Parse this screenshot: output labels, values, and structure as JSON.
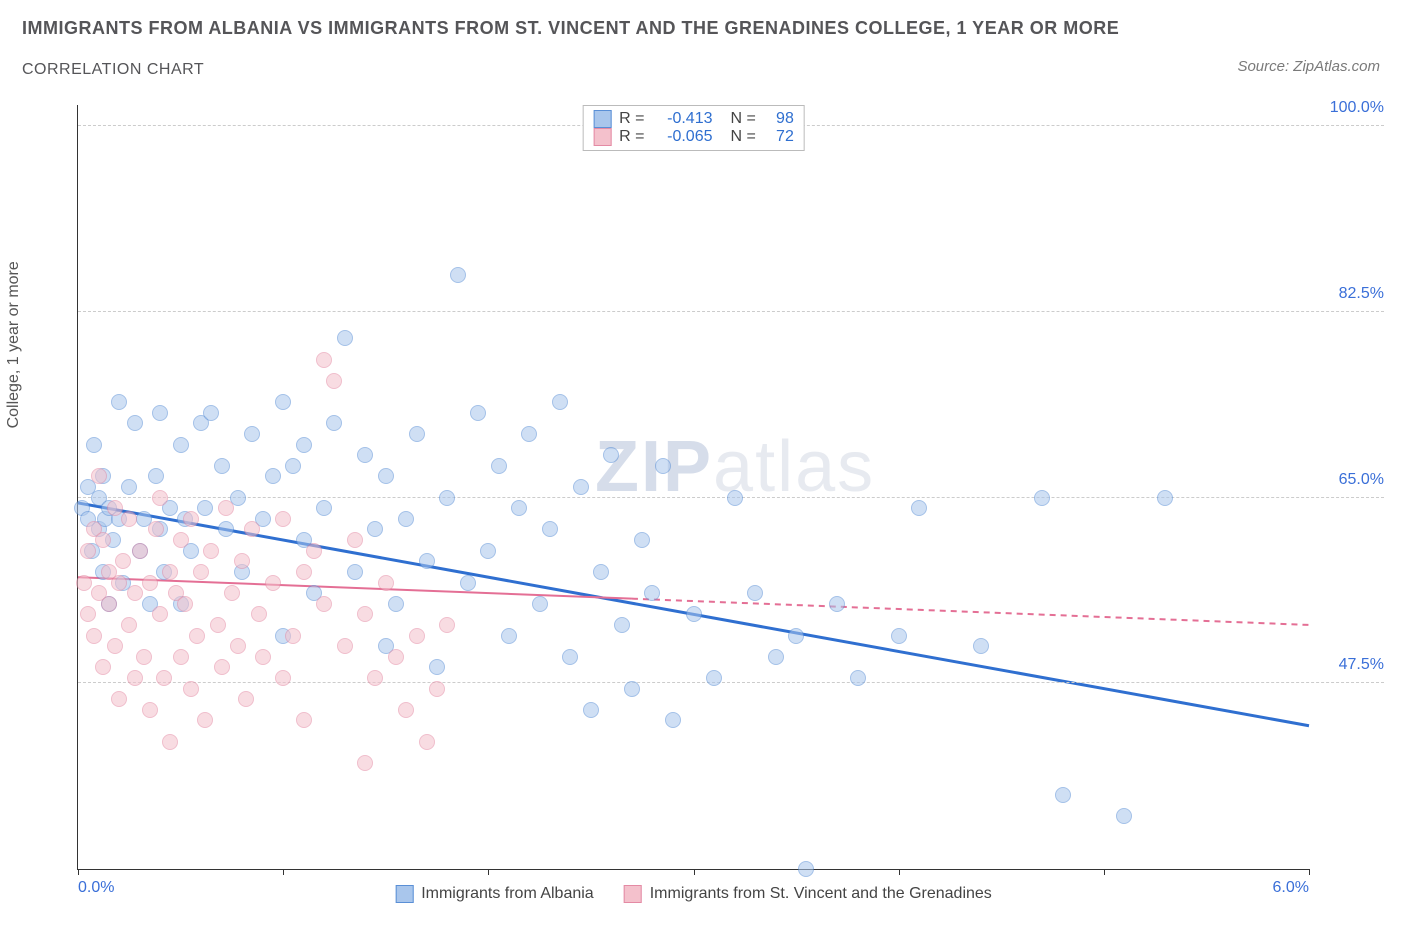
{
  "title_main": "IMMIGRANTS FROM ALBANIA VS IMMIGRANTS FROM ST. VINCENT AND THE GRENADINES COLLEGE, 1 YEAR OR MORE",
  "title_sub": "CORRELATION CHART",
  "source": "Source: ZipAtlas.com",
  "y_axis_label": "College, 1 year or more",
  "watermark_a": "ZIP",
  "watermark_b": "atlas",
  "chart": {
    "type": "scatter",
    "xlim": [
      0.0,
      6.0
    ],
    "ylim": [
      30.0,
      102.0
    ],
    "x_ticks": [
      0.0,
      1.0,
      2.0,
      3.0,
      4.0,
      5.0,
      6.0
    ],
    "x_tick_labels": {
      "0": "0.0%",
      "6": "6.0%"
    },
    "y_ticks": [
      47.5,
      65.0,
      82.5,
      100.0
    ],
    "y_tick_labels": [
      "47.5%",
      "65.0%",
      "82.5%",
      "100.0%"
    ],
    "grid_color": "#cccccc",
    "axis_color": "#333333",
    "background": "#ffffff",
    "point_radius": 8,
    "point_opacity": 0.55,
    "series": [
      {
        "key": "albania",
        "label": "Immigrants from Albania",
        "color_fill": "#a9c6ec",
        "color_stroke": "#5a8fd6",
        "R": "-0.413",
        "N": "98",
        "trend": {
          "x1": 0.0,
          "y1": 64.5,
          "x2": 6.0,
          "y2": 43.5,
          "color": "#2f6fd0",
          "width": 3,
          "dash_after_x": null
        },
        "points": [
          [
            0.02,
            64
          ],
          [
            0.05,
            66
          ],
          [
            0.05,
            63
          ],
          [
            0.07,
            60
          ],
          [
            0.08,
            70
          ],
          [
            0.1,
            62
          ],
          [
            0.1,
            65
          ],
          [
            0.12,
            58
          ],
          [
            0.12,
            67
          ],
          [
            0.13,
            63
          ],
          [
            0.15,
            64
          ],
          [
            0.15,
            55
          ],
          [
            0.17,
            61
          ],
          [
            0.2,
            74
          ],
          [
            0.2,
            63
          ],
          [
            0.22,
            57
          ],
          [
            0.25,
            66
          ],
          [
            0.28,
            72
          ],
          [
            0.3,
            60
          ],
          [
            0.32,
            63
          ],
          [
            0.35,
            55
          ],
          [
            0.38,
            67
          ],
          [
            0.4,
            73
          ],
          [
            0.4,
            62
          ],
          [
            0.42,
            58
          ],
          [
            0.45,
            64
          ],
          [
            0.5,
            70
          ],
          [
            0.5,
            55
          ],
          [
            0.52,
            63
          ],
          [
            0.55,
            60
          ],
          [
            0.6,
            72
          ],
          [
            0.62,
            64
          ],
          [
            0.65,
            73
          ],
          [
            0.7,
            68
          ],
          [
            0.72,
            62
          ],
          [
            0.78,
            65
          ],
          [
            0.8,
            58
          ],
          [
            0.85,
            71
          ],
          [
            0.9,
            63
          ],
          [
            0.95,
            67
          ],
          [
            1.0,
            74
          ],
          [
            1.0,
            52
          ],
          [
            1.05,
            68
          ],
          [
            1.1,
            61
          ],
          [
            1.1,
            70
          ],
          [
            1.15,
            56
          ],
          [
            1.2,
            64
          ],
          [
            1.25,
            72
          ],
          [
            1.3,
            80
          ],
          [
            1.35,
            58
          ],
          [
            1.4,
            69
          ],
          [
            1.45,
            62
          ],
          [
            1.5,
            51
          ],
          [
            1.5,
            67
          ],
          [
            1.55,
            55
          ],
          [
            1.6,
            63
          ],
          [
            1.65,
            71
          ],
          [
            1.7,
            59
          ],
          [
            1.75,
            49
          ],
          [
            1.8,
            65
          ],
          [
            1.85,
            86
          ],
          [
            1.9,
            57
          ],
          [
            1.95,
            73
          ],
          [
            2.0,
            60
          ],
          [
            2.05,
            68
          ],
          [
            2.1,
            52
          ],
          [
            2.15,
            64
          ],
          [
            2.2,
            71
          ],
          [
            2.25,
            55
          ],
          [
            2.3,
            62
          ],
          [
            2.35,
            74
          ],
          [
            2.4,
            50
          ],
          [
            2.45,
            66
          ],
          [
            2.5,
            45
          ],
          [
            2.55,
            58
          ],
          [
            2.6,
            69
          ],
          [
            2.65,
            53
          ],
          [
            2.7,
            47
          ],
          [
            2.75,
            61
          ],
          [
            2.8,
            56
          ],
          [
            2.85,
            68
          ],
          [
            2.9,
            44
          ],
          [
            3.0,
            54
          ],
          [
            3.1,
            48
          ],
          [
            3.2,
            65
          ],
          [
            3.3,
            56
          ],
          [
            3.4,
            50
          ],
          [
            3.5,
            52
          ],
          [
            3.55,
            30
          ],
          [
            3.7,
            55
          ],
          [
            3.8,
            48
          ],
          [
            4.0,
            52
          ],
          [
            4.1,
            64
          ],
          [
            4.4,
            51
          ],
          [
            4.7,
            65
          ],
          [
            4.8,
            37
          ],
          [
            5.1,
            35
          ],
          [
            5.3,
            65
          ]
        ]
      },
      {
        "key": "stvincent",
        "label": "Immigrants from St. Vincent and the Grenadines",
        "color_fill": "#f4c1cc",
        "color_stroke": "#e48aa4",
        "R": "-0.065",
        "N": "72",
        "trend": {
          "x1": 0.0,
          "y1": 57.5,
          "x2": 6.0,
          "y2": 53.0,
          "color": "#e46f95",
          "width": 2,
          "dash_after_x": 2.7
        },
        "points": [
          [
            0.03,
            57
          ],
          [
            0.05,
            60
          ],
          [
            0.05,
            54
          ],
          [
            0.08,
            62
          ],
          [
            0.08,
            52
          ],
          [
            0.1,
            56
          ],
          [
            0.1,
            67
          ],
          [
            0.12,
            49
          ],
          [
            0.12,
            61
          ],
          [
            0.15,
            55
          ],
          [
            0.15,
            58
          ],
          [
            0.18,
            64
          ],
          [
            0.18,
            51
          ],
          [
            0.2,
            57
          ],
          [
            0.2,
            46
          ],
          [
            0.22,
            59
          ],
          [
            0.25,
            53
          ],
          [
            0.25,
            63
          ],
          [
            0.28,
            48
          ],
          [
            0.28,
            56
          ],
          [
            0.3,
            60
          ],
          [
            0.32,
            50
          ],
          [
            0.35,
            57
          ],
          [
            0.35,
            45
          ],
          [
            0.38,
            62
          ],
          [
            0.4,
            54
          ],
          [
            0.4,
            65
          ],
          [
            0.42,
            48
          ],
          [
            0.45,
            58
          ],
          [
            0.45,
            42
          ],
          [
            0.48,
            56
          ],
          [
            0.5,
            61
          ],
          [
            0.5,
            50
          ],
          [
            0.52,
            55
          ],
          [
            0.55,
            63
          ],
          [
            0.55,
            47
          ],
          [
            0.58,
            52
          ],
          [
            0.6,
            58
          ],
          [
            0.62,
            44
          ],
          [
            0.65,
            60
          ],
          [
            0.68,
            53
          ],
          [
            0.7,
            49
          ],
          [
            0.72,
            64
          ],
          [
            0.75,
            56
          ],
          [
            0.78,
            51
          ],
          [
            0.8,
            59
          ],
          [
            0.82,
            46
          ],
          [
            0.85,
            62
          ],
          [
            0.88,
            54
          ],
          [
            0.9,
            50
          ],
          [
            0.95,
            57
          ],
          [
            1.0,
            48
          ],
          [
            1.0,
            63
          ],
          [
            1.05,
            52
          ],
          [
            1.1,
            58
          ],
          [
            1.1,
            44
          ],
          [
            1.15,
            60
          ],
          [
            1.2,
            55
          ],
          [
            1.2,
            78
          ],
          [
            1.25,
            76
          ],
          [
            1.3,
            51
          ],
          [
            1.35,
            61
          ],
          [
            1.4,
            40
          ],
          [
            1.4,
            54
          ],
          [
            1.45,
            48
          ],
          [
            1.5,
            57
          ],
          [
            1.55,
            50
          ],
          [
            1.6,
            45
          ],
          [
            1.65,
            52
          ],
          [
            1.7,
            42
          ],
          [
            1.75,
            47
          ],
          [
            1.8,
            53
          ]
        ]
      }
    ]
  },
  "legend_top": {
    "r_label": "R =",
    "n_label": "N ="
  }
}
